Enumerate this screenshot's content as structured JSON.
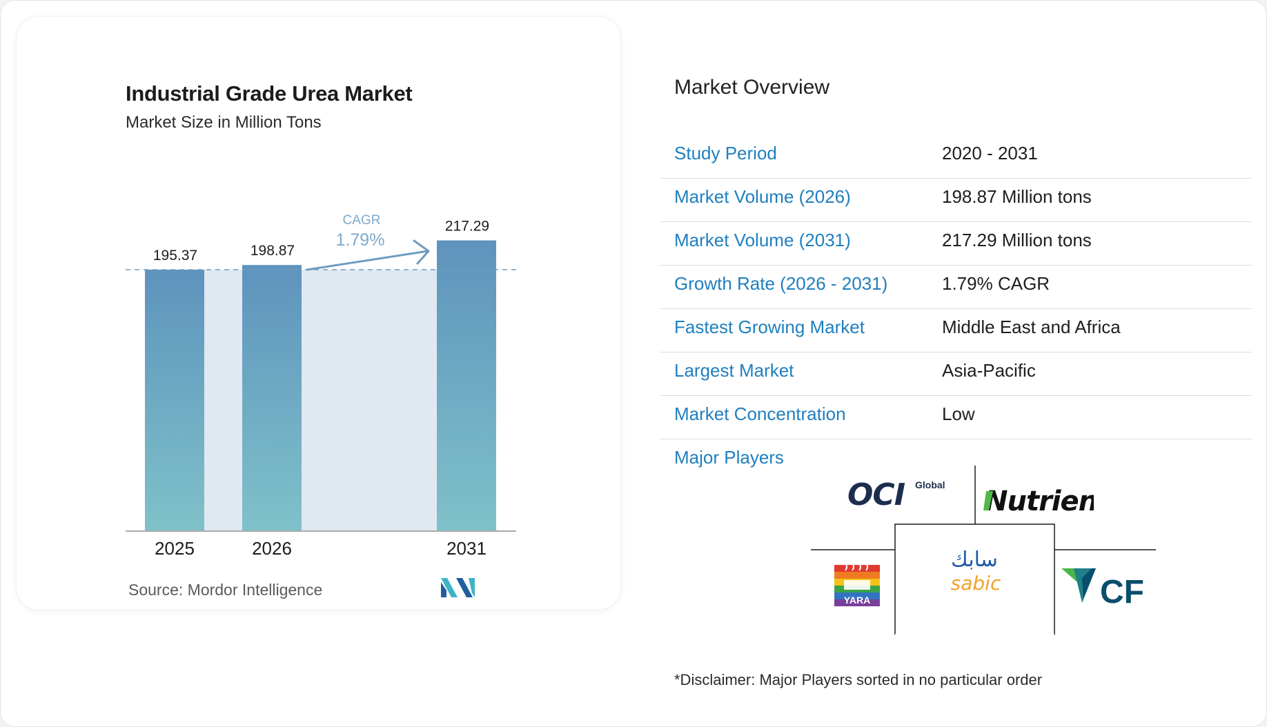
{
  "chart_data": {
    "type": "bar",
    "title": "Industrial Grade Urea Market",
    "subtitle": "Market Size in Million Tons",
    "categories": [
      "2025",
      "2026",
      "2031"
    ],
    "values": [
      195.37,
      198.87,
      217.29
    ],
    "value_labels": [
      "195.37",
      "198.87",
      "217.29"
    ],
    "cagr_label": "CAGR",
    "cagr_value": "1.79%",
    "bar_color_top": "#5e93bd",
    "bar_color_bottom": "#7fc1c9",
    "band_color": "#e0e9f1",
    "reference_line_value": 195.37,
    "grid": false
  },
  "source": {
    "label": "Source:",
    "name": "Mordor Intelligence"
  },
  "overview": {
    "title": "Market Overview",
    "rows": [
      {
        "label": "Study Period",
        "value": "2020 - 2031"
      },
      {
        "label": "Market Volume (2026)",
        "value": "198.87 Million tons"
      },
      {
        "label": "Market Volume (2031)",
        "value": "217.29 Million tons"
      },
      {
        "label": "Growth Rate (2026 - 2031)",
        "value": "1.79% CAGR"
      },
      {
        "label": "Fastest Growing Market",
        "value": "Middle East and Africa"
      },
      {
        "label": "Largest Market",
        "value": "Asia-Pacific"
      },
      {
        "label": "Market Concentration",
        "value": "Low"
      }
    ]
  },
  "major_players": {
    "label": "Major Players",
    "logos": [
      {
        "icon": "oci-global-logo",
        "text": "OCI",
        "suffix": "Global"
      },
      {
        "icon": "nutrien-logo",
        "text": "Nutrien"
      },
      {
        "icon": "yara-logo",
        "text": "YARA"
      },
      {
        "icon": "sabic-logo",
        "text": "sabic",
        "arabic_text": "سابك"
      },
      {
        "icon": "cf-logo",
        "text": "CF"
      }
    ]
  },
  "disclaimer": "*Disclaimer: Major Players sorted in no particular order",
  "colors": {
    "accent_blue": "#1f7fbf",
    "arrow": "#6f9cc0",
    "cagr_text": "#7eaacb"
  }
}
